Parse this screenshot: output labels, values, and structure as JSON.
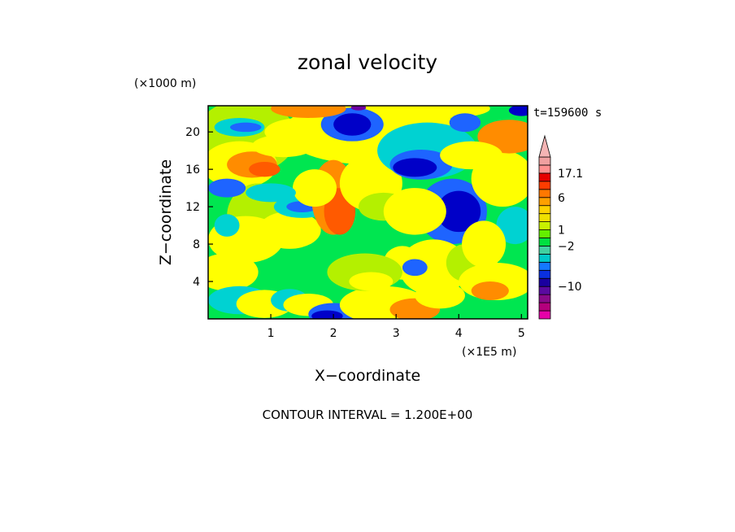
{
  "chart_data": {
    "type": "heatmap",
    "title": "zonal velocity",
    "xlabel": "X−coordinate",
    "ylabel": "Z−coordinate",
    "x_unit": "(×1E5 m)",
    "y_unit": "(×1000 m)",
    "time_label": "t=159600 s",
    "contour_note": "CONTOUR INTERVAL = 1.200E+00",
    "xlim": [
      0,
      5.1
    ],
    "ylim": [
      0,
      22.8
    ],
    "x_ticks": [
      {
        "value": 1,
        "label": "1"
      },
      {
        "value": 2,
        "label": "2"
      },
      {
        "value": 3,
        "label": "3"
      },
      {
        "value": 4,
        "label": "4"
      },
      {
        "value": 5,
        "label": "5"
      }
    ],
    "y_ticks": [
      {
        "value": 4,
        "label": "4"
      },
      {
        "value": 8,
        "label": "8"
      },
      {
        "value": 12,
        "label": "12"
      },
      {
        "value": 16,
        "label": "16"
      },
      {
        "value": 20,
        "label": "20"
      }
    ],
    "colorbar": {
      "colors": [
        "#e600a8",
        "#b4007c",
        "#8a0a8a",
        "#5a0aa0",
        "#1a00a0",
        "#0a30e0",
        "#1478ff",
        "#00c8c8",
        "#40d0a0",
        "#00e040",
        "#64f000",
        "#c8f000",
        "#f0e000",
        "#ffd200",
        "#ffa000",
        "#ff7800",
        "#ff3c00",
        "#e60000",
        "#ff9090",
        "#f0a0a0",
        "#f4b4b4"
      ],
      "labels": [
        {
          "index": 18,
          "text": "17.1"
        },
        {
          "index": 15,
          "text": "6"
        },
        {
          "index": 11,
          "text": "1"
        },
        {
          "index": 9,
          "text": "−2"
        },
        {
          "index": 4,
          "text": "−10"
        }
      ]
    },
    "palette": {
      "dark_blue": "#0000c8",
      "medium_blue": "#1e64ff",
      "cyan": "#00d2d2",
      "green": "#00e650",
      "yellow_green": "#b4f000",
      "yellow": "#ffff00",
      "orange": "#ff8c00",
      "red_orange": "#ff5a00",
      "purple": "#6e00a0"
    }
  }
}
